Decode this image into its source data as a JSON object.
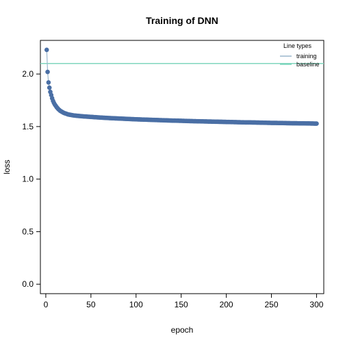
{
  "chart_data": {
    "type": "line",
    "title": "Training of DNN",
    "xlabel": "epoch",
    "ylabel": "loss",
    "xlim": [
      -6,
      308
    ],
    "ylim": [
      -0.09,
      2.32
    ],
    "x_ticks": [
      0,
      50,
      100,
      150,
      200,
      250,
      300
    ],
    "y_ticks": [
      0.0,
      0.5,
      1.0,
      1.5,
      2.0
    ],
    "x_tick_labels": [
      "0",
      "50",
      "100",
      "150",
      "200",
      "250",
      "300"
    ],
    "y_tick_labels": [
      "0.0",
      "0.5",
      "1.0",
      "1.5",
      "2.0"
    ],
    "legend": {
      "title": "Line types",
      "placement": "top-right",
      "entries": [
        "training",
        "baseline"
      ]
    },
    "grid": false,
    "series": [
      {
        "name": "training",
        "style": "line+points",
        "color": "#4a6fa5",
        "line_color": "#9ab6cc",
        "x": [
          1,
          2,
          3,
          4,
          5,
          6,
          7,
          8,
          9,
          10,
          12,
          14,
          16,
          18,
          20,
          25,
          30,
          35,
          40,
          50,
          60,
          70,
          80,
          90,
          100,
          110,
          120,
          130,
          140,
          150,
          160,
          170,
          180,
          190,
          200,
          210,
          220,
          230,
          240,
          250,
          260,
          270,
          280,
          290,
          300
        ],
        "values": [
          2.23,
          2.02,
          1.92,
          1.87,
          1.83,
          1.8,
          1.77,
          1.745,
          1.725,
          1.71,
          1.685,
          1.665,
          1.65,
          1.64,
          1.63,
          1.615,
          1.607,
          1.602,
          1.598,
          1.592,
          1.586,
          1.581,
          1.577,
          1.573,
          1.569,
          1.566,
          1.563,
          1.56,
          1.557,
          1.555,
          1.552,
          1.55,
          1.548,
          1.546,
          1.544,
          1.542,
          1.54,
          1.539,
          1.537,
          1.535,
          1.534,
          1.532,
          1.531,
          1.53,
          1.528
        ]
      },
      {
        "name": "baseline",
        "style": "hline",
        "color": "#7fd6bd",
        "value": 2.1
      }
    ]
  }
}
